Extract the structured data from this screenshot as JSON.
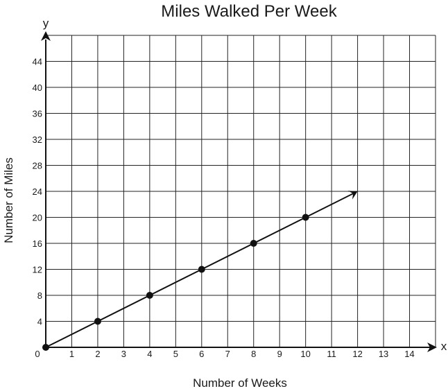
{
  "chart_data": {
    "type": "line",
    "title": "Miles Walked Per Week",
    "xlabel": "Number of Weeks",
    "ylabel": "Number of Miles",
    "x_axis_var": "y_placeholder",
    "x_var": "x",
    "y_var": "y",
    "origin_label": "0",
    "xlim": [
      0,
      15
    ],
    "ylim": [
      0,
      48
    ],
    "x_ticks": [
      1,
      2,
      3,
      4,
      5,
      6,
      7,
      8,
      9,
      10,
      11,
      12,
      13,
      14
    ],
    "y_ticks": [
      4,
      8,
      12,
      16,
      20,
      24,
      28,
      32,
      36,
      40,
      44
    ],
    "grid": true,
    "points": [
      {
        "x": 0,
        "y": 0
      },
      {
        "x": 2,
        "y": 4
      },
      {
        "x": 4,
        "y": 8
      },
      {
        "x": 6,
        "y": 12
      },
      {
        "x": 8,
        "y": 16
      },
      {
        "x": 10,
        "y": 20
      }
    ],
    "line_end": {
      "x": 12,
      "y": 24
    },
    "line_color": "#111111",
    "grid_color": "#222222"
  }
}
